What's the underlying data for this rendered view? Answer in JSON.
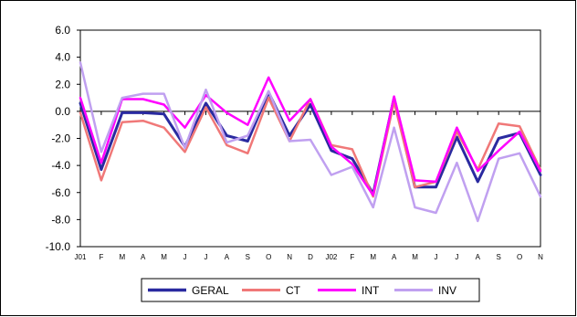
{
  "chart_data": {
    "type": "line",
    "categories": [
      "J01",
      "F",
      "M",
      "A",
      "M",
      "J",
      "J",
      "A",
      "S",
      "O",
      "N",
      "D",
      "J02",
      "F",
      "M",
      "A",
      "M",
      "J",
      "J",
      "A",
      "S",
      "O",
      "N"
    ],
    "ylim": [
      -10.0,
      6.0
    ],
    "yticks": [
      "6.0",
      "4.0",
      "2.0",
      "0.0",
      "-2.0",
      "-4.0",
      "-6.0",
      "-8.0",
      "-10.0"
    ],
    "grid": false,
    "legend_position": "bottom",
    "series": [
      {
        "name": "GERAL",
        "color": "#2a2aa0",
        "width": 3,
        "values": [
          0.6,
          -4.3,
          -0.1,
          -0.1,
          -0.2,
          -2.6,
          0.6,
          -1.8,
          -2.2,
          1.4,
          -1.8,
          0.5,
          -2.9,
          -3.5,
          -6.1,
          1.0,
          -5.6,
          -5.6,
          -1.9,
          -5.2,
          -2.0,
          -1.6,
          -4.7
        ]
      },
      {
        "name": "CT",
        "color": "#f07878",
        "width": 2.5,
        "values": [
          -0.1,
          -5.1,
          -0.8,
          -0.7,
          -1.2,
          -3.0,
          0.3,
          -2.5,
          -3.1,
          1.0,
          -2.2,
          0.9,
          -2.5,
          -2.8,
          -6.3,
          0.7,
          -5.6,
          -5.2,
          -1.5,
          -4.3,
          -0.9,
          -1.1,
          -4.3
        ]
      },
      {
        "name": "INT",
        "color": "#ff00ff",
        "width": 2.5,
        "values": [
          1.0,
          -3.8,
          0.9,
          0.9,
          0.5,
          -1.2,
          1.2,
          -0.1,
          -1.0,
          2.5,
          -0.7,
          0.9,
          -2.6,
          -3.9,
          -6.2,
          1.1,
          -5.1,
          -5.2,
          -1.2,
          -4.4,
          -2.9,
          -1.5,
          -4.4
        ]
      },
      {
        "name": "INV",
        "color": "#c0a0f0",
        "width": 2.5,
        "values": [
          3.6,
          -3.0,
          1.0,
          1.3,
          1.3,
          -2.7,
          1.6,
          -2.3,
          -1.8,
          1.5,
          -2.2,
          -2.1,
          -4.7,
          -4.1,
          -7.1,
          -1.2,
          -7.1,
          -7.5,
          -3.8,
          -8.1,
          -3.5,
          -3.1,
          -6.3
        ]
      }
    ]
  }
}
